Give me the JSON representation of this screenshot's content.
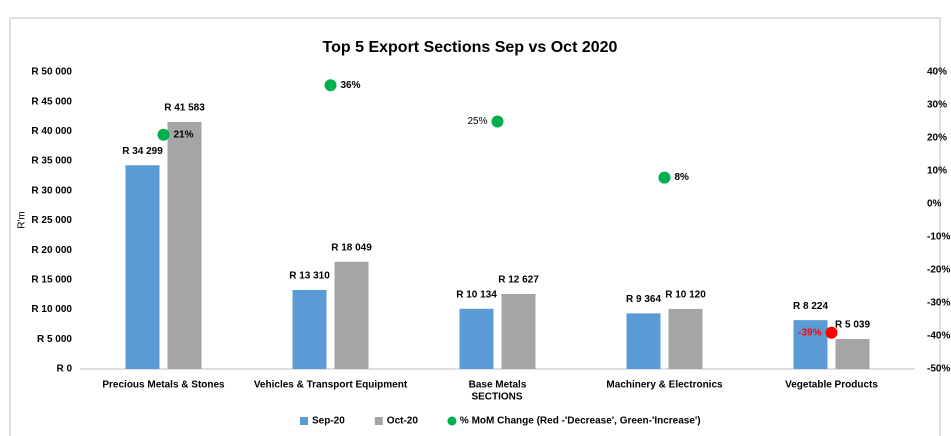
{
  "chart_data": {
    "type": "bar",
    "title": "Top 5 Export Sections  Sep vs Oct 2020",
    "x_label": "SECTIONS",
    "y_label": "R'm",
    "categories": [
      "Precious Metals & Stones",
      "Vehicles & Transport Equipment",
      "Base Metals",
      "Machinery & Electronics",
      "Vegetable Products"
    ],
    "series": [
      {
        "name": "Sep-20",
        "color": "#5b9bd5",
        "values": [
          34299,
          13310,
          10134,
          9364,
          8224
        ],
        "value_labels": [
          "R 34 299",
          "R 13 310",
          "R 10 134",
          "R 9 364",
          "R 8 224"
        ]
      },
      {
        "name": "Oct-20",
        "color": "#a5a5a5",
        "values": [
          41583,
          18049,
          12627,
          10120,
          5039
        ],
        "value_labels": [
          "R 41 583",
          "R 18 049",
          "R 12 627",
          "R 10 120",
          "R 5 039"
        ]
      },
      {
        "name": "% MoM Change (Red -'Decrease', Green-'Increase')",
        "type": "scatter",
        "axis": "y2",
        "color": "#00b050",
        "point_colors": [
          "#00b050",
          "#00b050",
          "#00b050",
          "#00b050",
          "#ff0000"
        ],
        "values": [
          21,
          36,
          25,
          8,
          -39
        ],
        "value_labels": [
          "21%",
          "36%",
          "25%",
          "8%",
          "-39%"
        ]
      }
    ],
    "ylim": [
      0,
      50000
    ],
    "yticks": [
      {
        "value": 0,
        "label": "R 0"
      },
      {
        "value": 5000,
        "label": "R 5 000"
      },
      {
        "value": 10000,
        "label": "R 10 000"
      },
      {
        "value": 15000,
        "label": "R 15 000"
      },
      {
        "value": 20000,
        "label": "R 20 000"
      },
      {
        "value": 25000,
        "label": "R 25 000"
      },
      {
        "value": 30000,
        "label": "R 30 000"
      },
      {
        "value": 35000,
        "label": "R 35 000"
      },
      {
        "value": 40000,
        "label": "R 40 000"
      },
      {
        "value": 45000,
        "label": "R 45 000"
      },
      {
        "value": 50000,
        "label": "R 50 000"
      }
    ],
    "y2lim": [
      -50,
      40
    ],
    "y2ticks": [
      {
        "value": -50,
        "label": "-50%"
      },
      {
        "value": -40,
        "label": "-40%"
      },
      {
        "value": -30,
        "label": "-30%"
      },
      {
        "value": -20,
        "label": "-20%"
      },
      {
        "value": -10,
        "label": "-10%"
      },
      {
        "value": 0,
        "label": "0%"
      },
      {
        "value": 10,
        "label": "10%"
      },
      {
        "value": 20,
        "label": "20%"
      },
      {
        "value": 30,
        "label": "30%"
      },
      {
        "value": 40,
        "label": "40%"
      }
    ],
    "grid": false,
    "legend": "bottom"
  }
}
